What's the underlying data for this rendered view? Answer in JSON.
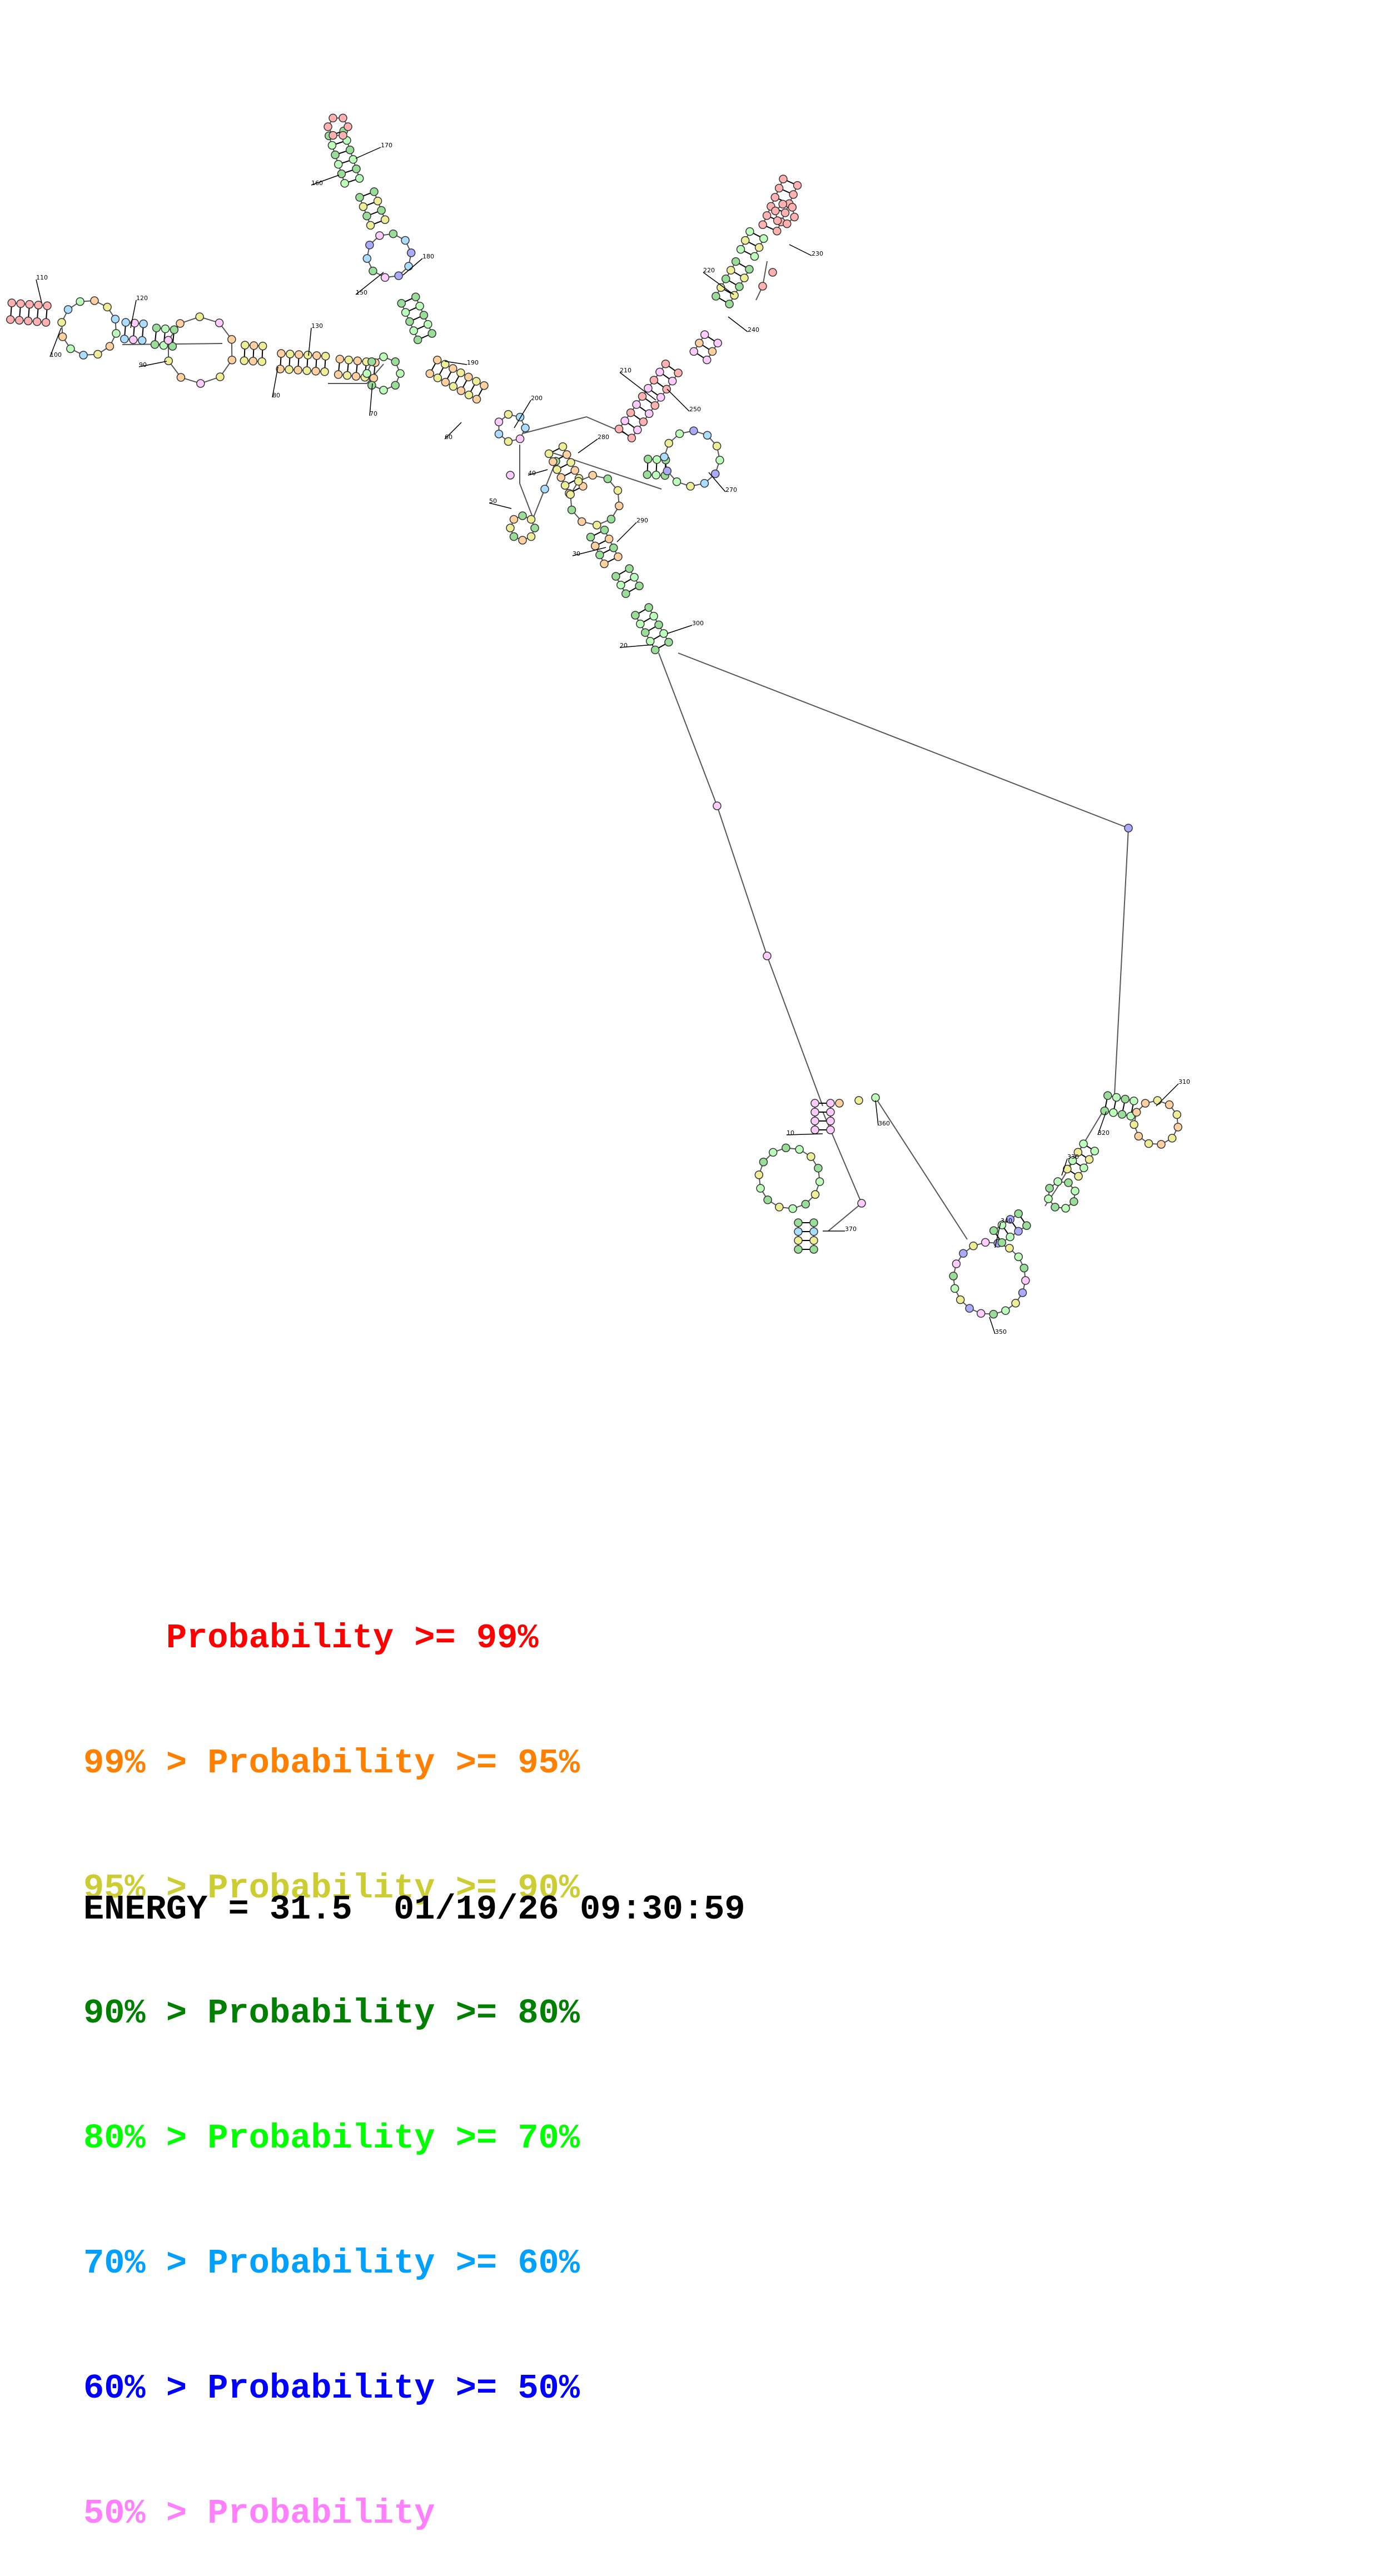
{
  "diagram": {
    "position_labels": [
      "10",
      "20",
      "30",
      "40",
      "50",
      "60",
      "70",
      "80",
      "90",
      "100",
      "110",
      "120",
      "130",
      "150",
      "160",
      "170",
      "180",
      "190",
      "200",
      "210",
      "220",
      "230",
      "240",
      "250",
      "270",
      "280",
      "290",
      "300",
      "310",
      "320",
      "330",
      "340",
      "350",
      "360",
      "370"
    ]
  },
  "legend": {
    "rows": [
      {
        "prefix": "    ",
        "text": "Probability >= 99%",
        "color": "#ff0000"
      },
      {
        "prefix": "99% > ",
        "text": "Probability >= 95%",
        "color": "#ff8000"
      },
      {
        "prefix": "95% > ",
        "text": "Probability >= 90%",
        "color": "#cccc33"
      },
      {
        "prefix": "90% > ",
        "text": "Probability >= 80%",
        "color": "#008000"
      },
      {
        "prefix": "80% > ",
        "text": "Probability >= 70%",
        "color": "#00ff00"
      },
      {
        "prefix": "70% > ",
        "text": "Probability >= 60%",
        "color": "#00a0ff"
      },
      {
        "prefix": "60% > ",
        "text": "Probability >= 50%",
        "color": "#0000ff"
      },
      {
        "prefix": "50% > ",
        "text": "Probability",
        "color": "#ff80ff"
      }
    ]
  },
  "footer": {
    "energy": "ENERGY = 31.5  01/19/26 09:30:59"
  }
}
